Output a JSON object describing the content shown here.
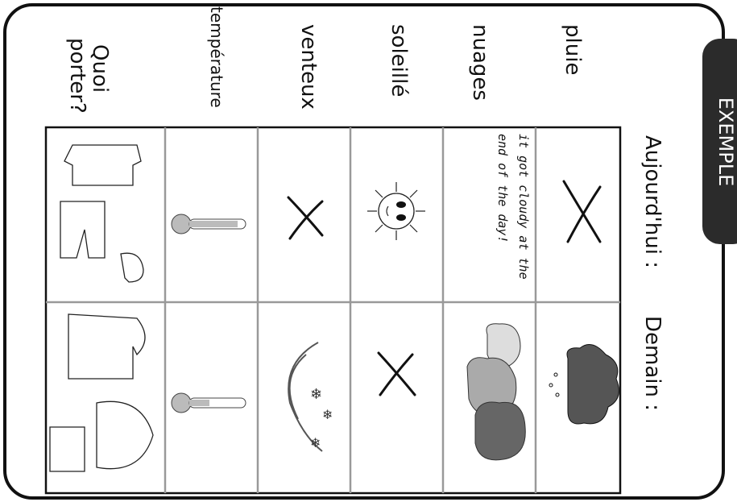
{
  "worksheet": {
    "tab": "EXEMPLE",
    "columns": [
      "pluie",
      "nuages",
      "soleillé",
      "venteux",
      "température",
      "Quoi porter?"
    ],
    "rows": [
      "Aujourd'hui :",
      "Demain :"
    ],
    "note": [
      "it got cloudy at the",
      "end  of the day!"
    ]
  }
}
